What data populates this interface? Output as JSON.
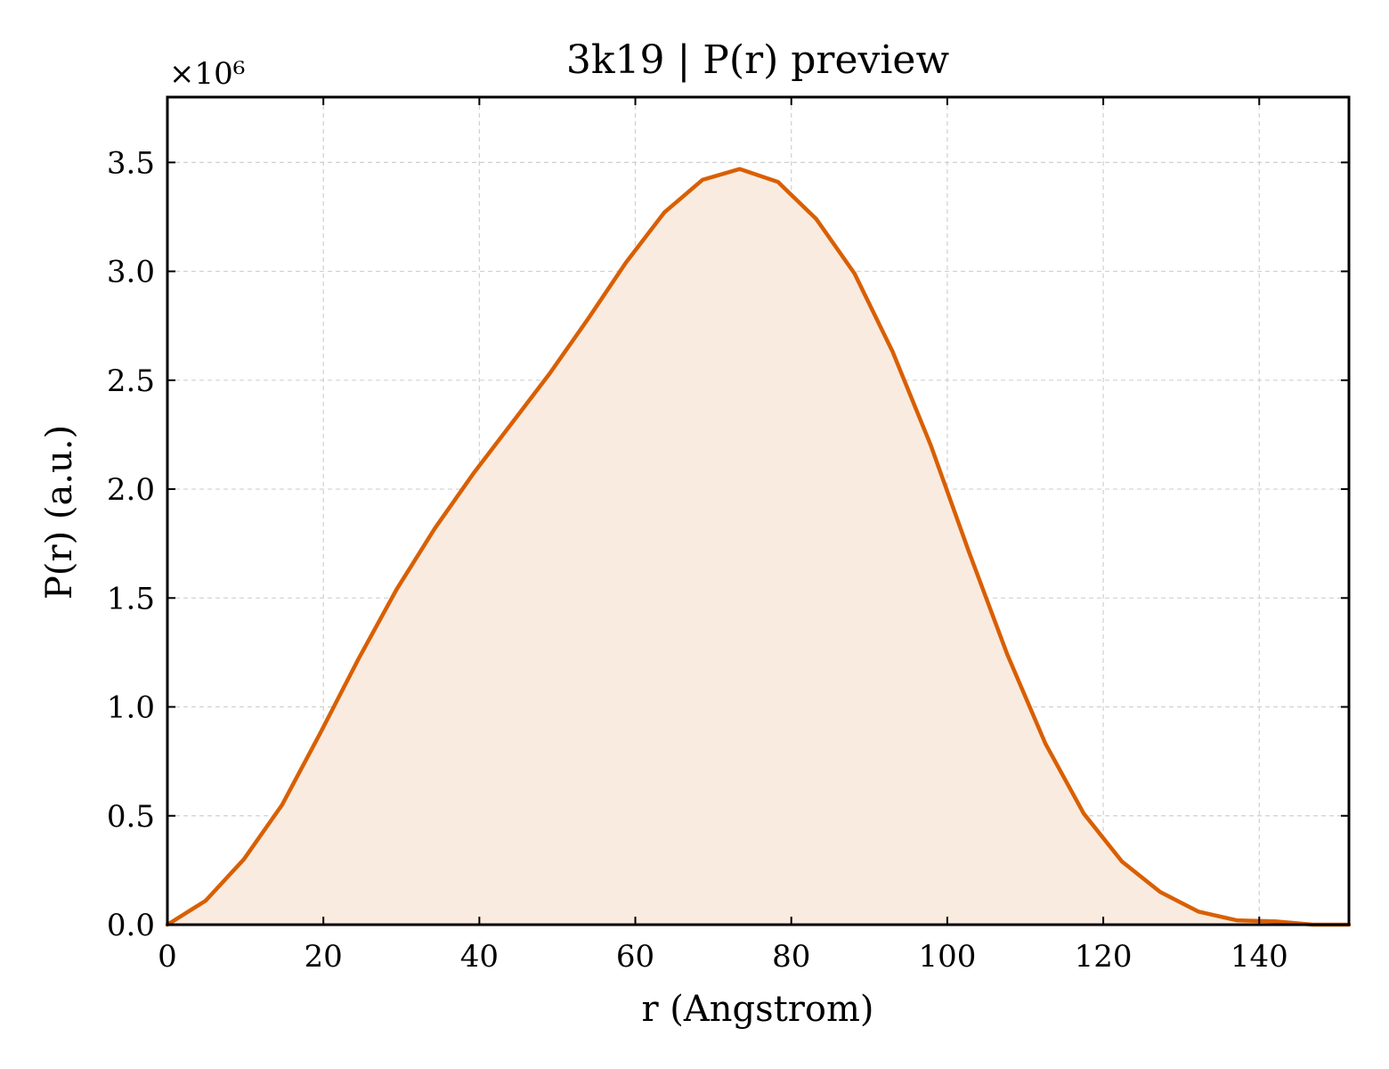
{
  "chart_data": {
    "type": "area",
    "title": "3k19 | P(r) preview",
    "xlabel": "r (Angstrom)",
    "ylabel": "P(r) (a.u.)",
    "y_multiplier_label": "×10⁶",
    "xlim": [
      0,
      151.5
    ],
    "ylim": [
      0,
      3.8
    ],
    "x_ticks": [
      0,
      20,
      40,
      60,
      80,
      100,
      120,
      140
    ],
    "x_tick_labels": [
      "0",
      "20",
      "40",
      "60",
      "80",
      "100",
      "120",
      "140"
    ],
    "y_ticks": [
      0.0,
      0.5,
      1.0,
      1.5,
      2.0,
      2.5,
      3.0,
      3.5
    ],
    "y_tick_labels": [
      "0.0",
      "0.5",
      "1.0",
      "1.5",
      "2.0",
      "2.5",
      "3.0",
      "3.5"
    ],
    "grid": true,
    "line_color": "#d95f02",
    "fill_color": "#f9ebe0",
    "series": [
      {
        "x": [
          0,
          4.9,
          9.8,
          14.7,
          19.6,
          24.5,
          29.4,
          34.3,
          39.2,
          44.1,
          49.0,
          53.9,
          58.8,
          63.7,
          68.6,
          73.4,
          78.3,
          83.2,
          88.1,
          93.0,
          97.9,
          102.8,
          107.7,
          112.6,
          117.5,
          122.4,
          127.3,
          132.2,
          137.1,
          142.0,
          146.9,
          151.5
        ],
        "values": [
          0.0,
          0.11,
          0.3,
          0.55,
          0.88,
          1.22,
          1.54,
          1.82,
          2.07,
          2.3,
          2.53,
          2.78,
          3.04,
          3.27,
          3.42,
          3.47,
          3.41,
          3.24,
          2.99,
          2.63,
          2.2,
          1.71,
          1.24,
          0.83,
          0.51,
          0.29,
          0.15,
          0.06,
          0.02,
          0.015,
          0.0,
          0.0
        ]
      }
    ]
  }
}
